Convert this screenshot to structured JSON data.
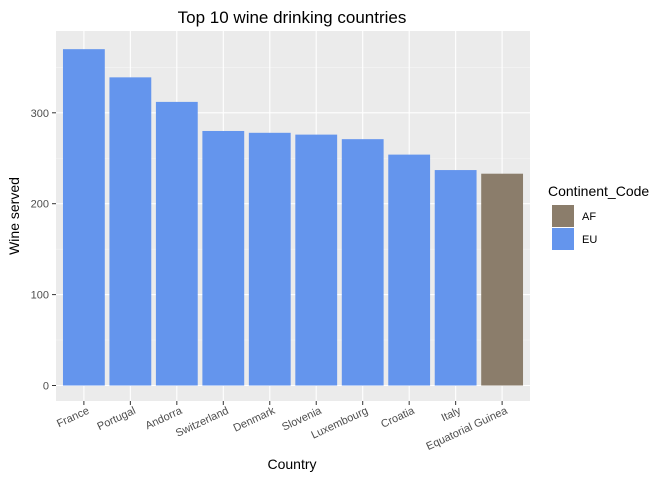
{
  "chart_data": {
    "type": "bar",
    "title": "Top 10 wine drinking countries",
    "xlabel": "Country",
    "ylabel": "Wine served",
    "categories": [
      "France",
      "Portugal",
      "Andorra",
      "Switzerland",
      "Denmark",
      "Slovenia",
      "Luxembourg",
      "Croatia",
      "Italy",
      "Equatorial Guinea"
    ],
    "values": [
      370,
      339,
      312,
      280,
      278,
      276,
      271,
      254,
      237,
      233
    ],
    "continent": [
      "EU",
      "EU",
      "EU",
      "EU",
      "EU",
      "EU",
      "EU",
      "EU",
      "EU",
      "AF"
    ],
    "ylim": [
      0,
      390
    ],
    "yticks": [
      0,
      100,
      200,
      300
    ],
    "grid": true,
    "legend": {
      "title": "Continent_Code",
      "placement": "right",
      "entries": [
        {
          "label": "AF",
          "color": "#8B7D6B"
        },
        {
          "label": "EU",
          "color": "#6495ED"
        }
      ]
    }
  }
}
